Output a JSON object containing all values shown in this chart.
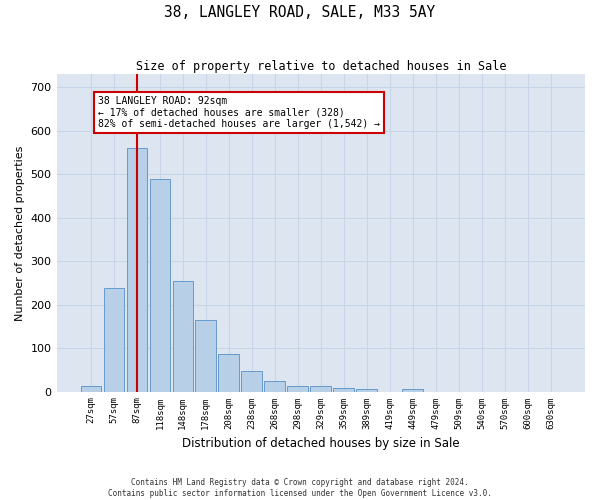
{
  "title": "38, LANGLEY ROAD, SALE, M33 5AY",
  "subtitle": "Size of property relative to detached houses in Sale",
  "xlabel": "Distribution of detached houses by size in Sale",
  "ylabel": "Number of detached properties",
  "bar_labels": [
    "27sqm",
    "57sqm",
    "87sqm",
    "118sqm",
    "148sqm",
    "178sqm",
    "208sqm",
    "238sqm",
    "268sqm",
    "298sqm",
    "329sqm",
    "359sqm",
    "389sqm",
    "419sqm",
    "449sqm",
    "479sqm",
    "509sqm",
    "540sqm",
    "570sqm",
    "600sqm",
    "630sqm"
  ],
  "bar_values": [
    13,
    238,
    560,
    490,
    255,
    165,
    87,
    48,
    25,
    13,
    12,
    8,
    6,
    0,
    7,
    0,
    0,
    0,
    0,
    0,
    0
  ],
  "bar_color": "#b8cfe8",
  "bar_edge_color": "#6699cc",
  "property_line_x": 2.0,
  "property_label": "38 LANGLEY ROAD: 92sqm",
  "annotation_line1": "← 17% of detached houses are smaller (328)",
  "annotation_line2": "82% of semi-detached houses are larger (1,542) →",
  "annotation_box_color": "#ffffff",
  "annotation_box_edge": "#cc0000",
  "property_line_color": "#cc0000",
  "ylim": [
    0,
    730
  ],
  "yticks": [
    0,
    100,
    200,
    300,
    400,
    500,
    600,
    700
  ],
  "grid_color": "#c8d4e8",
  "background_color": "#dde6f0",
  "footer_line1": "Contains HM Land Registry data © Crown copyright and database right 2024.",
  "footer_line2": "Contains public sector information licensed under the Open Government Licence v3.0."
}
